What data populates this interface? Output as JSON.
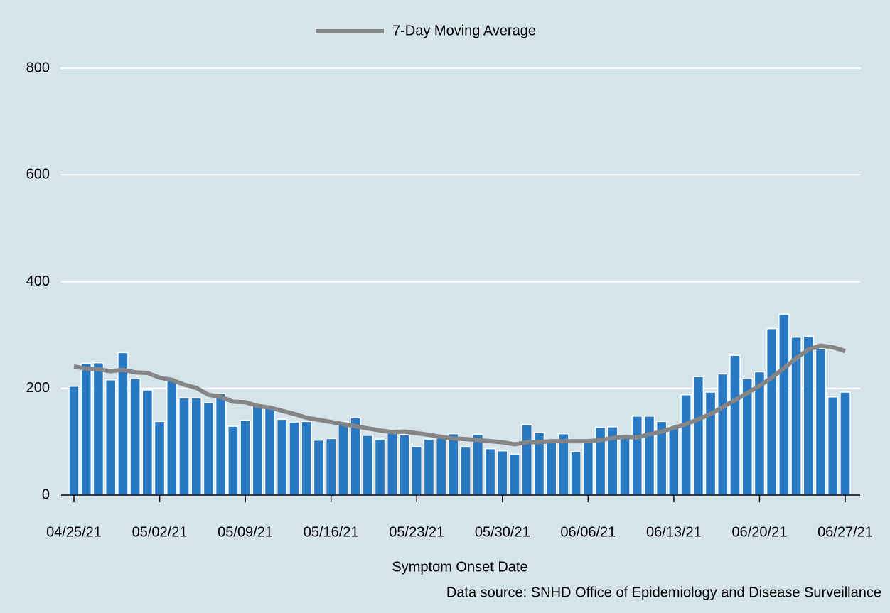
{
  "chart_data": {
    "type": "bar-line",
    "legend_label": "7-Day Moving Average",
    "x_label": "Symptom Onset Date",
    "source": "Data source: SNHD Office of Epidemiology and Disease Surveillance",
    "categories": [
      "04/25/21",
      null,
      null,
      null,
      null,
      null,
      null,
      "05/02/21",
      null,
      null,
      null,
      null,
      null,
      null,
      "05/09/21",
      null,
      null,
      null,
      null,
      null,
      null,
      "05/16/21",
      null,
      null,
      null,
      null,
      null,
      null,
      "05/23/21",
      null,
      null,
      null,
      null,
      null,
      null,
      "05/30/21",
      null,
      null,
      null,
      null,
      null,
      null,
      "06/06/21",
      null,
      null,
      null,
      null,
      null,
      null,
      "06/13/21",
      null,
      null,
      null,
      null,
      null,
      null,
      "06/20/21",
      null,
      null,
      null,
      null,
      null,
      null,
      "06/27/21"
    ],
    "series": [
      {
        "name": null,
        "type": "bar",
        "color": "#2878c2",
        "values": [
          204,
          247,
          248,
          216,
          267,
          218,
          197,
          138,
          214,
          182,
          182,
          173,
          190,
          129,
          140,
          168,
          163,
          142,
          137,
          138,
          103,
          106,
          137,
          145,
          112,
          105,
          119,
          113,
          91,
          105,
          107,
          115,
          90,
          114,
          87,
          83,
          77,
          132,
          117,
          100,
          115,
          81,
          100,
          127,
          128,
          110,
          148,
          148,
          138,
          128,
          188,
          222,
          193,
          227,
          262,
          218,
          231,
          312,
          339,
          296,
          298,
          274,
          184,
          193
        ]
      },
      {
        "name": "7-Day Moving Average",
        "type": "line",
        "color": "#858585",
        "values": [
          241,
          237,
          236,
          232,
          235,
          230,
          229,
          220,
          216,
          207,
          201,
          188,
          184,
          175,
          174,
          167,
          164,
          158,
          152,
          145,
          141,
          137,
          133,
          129,
          125,
          121,
          118,
          119,
          116,
          113,
          109,
          106,
          105,
          103,
          101,
          99,
          95,
          99,
          99,
          101,
          101,
          101,
          101,
          103,
          107,
          109,
          108,
          114,
          119,
          126,
          133,
          142,
          152,
          165,
          178,
          191,
          205,
          220,
          238,
          256,
          273,
          280,
          277,
          270
        ]
      }
    ],
    "ylim": [
      0,
      800
    ],
    "yticks": [
      0,
      200,
      400,
      600,
      800
    ],
    "grid": true
  }
}
